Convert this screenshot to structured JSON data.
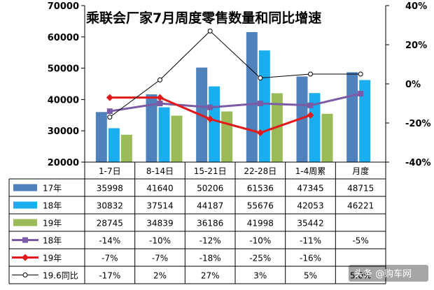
{
  "title": "乘联会厂家7月周度零售数量和同比增速",
  "watermark": "头条 @购车网",
  "chart_data": {
    "type": "bar",
    "title": "乘联会厂家7月周度零售数量和同比增速",
    "categories": [
      "1-7日",
      "8-14日",
      "15-21日",
      "22-28日",
      "1-4周累",
      "月度"
    ],
    "ylim": [
      20000,
      70000
    ],
    "y_ticks": [
      "70000",
      "60000",
      "50000",
      "40000",
      "30000",
      "20000"
    ],
    "y2lim": [
      -0.4,
      0.4
    ],
    "y2_ticks": [
      "40%",
      "20%",
      "0%",
      "-20%",
      "-40%"
    ],
    "series": [
      {
        "name": "17年",
        "kind": "bar",
        "color": "#4f81bd",
        "values": [
          35998,
          41640,
          50206,
          61536,
          47345,
          48715
        ],
        "labels": [
          "35998",
          "41640",
          "50206",
          "61536",
          "47345",
          "48715"
        ]
      },
      {
        "name": "18年",
        "kind": "bar",
        "color": "#1aaeee",
        "values": [
          30832,
          37514,
          44187,
          55676,
          42053,
          46221
        ],
        "labels": [
          "30832",
          "37514",
          "44187",
          "55676",
          "42053",
          "46221"
        ]
      },
      {
        "name": "19年",
        "kind": "bar",
        "color": "#9bbb59",
        "values": [
          28745,
          34839,
          36186,
          41998,
          35442,
          null
        ],
        "labels": [
          "28745",
          "34839",
          "36186",
          "41998",
          "35442",
          ""
        ]
      },
      {
        "name": "18年",
        "kind": "line",
        "axis": "right",
        "color": "#7b5ba6",
        "marker": "square",
        "values": [
          -0.14,
          -0.1,
          -0.12,
          -0.1,
          -0.11,
          -0.05
        ],
        "labels": [
          "-14%",
          "-10%",
          "-12%",
          "-10%",
          "-11%",
          "-5%"
        ]
      },
      {
        "name": "19年",
        "kind": "line",
        "axis": "right",
        "color": "#e31a1c",
        "marker": "diamond",
        "values": [
          -0.07,
          -0.07,
          -0.18,
          -0.25,
          -0.16,
          null
        ],
        "labels": [
          "-7%",
          "-7%",
          "-18%",
          "-25%",
          "-16%",
          ""
        ]
      },
      {
        "name": "19.6同比",
        "kind": "line",
        "axis": "right",
        "color": "#000000",
        "marker": "circle",
        "values": [
          -0.17,
          0.02,
          0.27,
          0.03,
          0.05,
          0.05
        ],
        "labels": [
          "-17%",
          "2%",
          "27%",
          "3%",
          "5%",
          "5.0%"
        ]
      }
    ]
  }
}
